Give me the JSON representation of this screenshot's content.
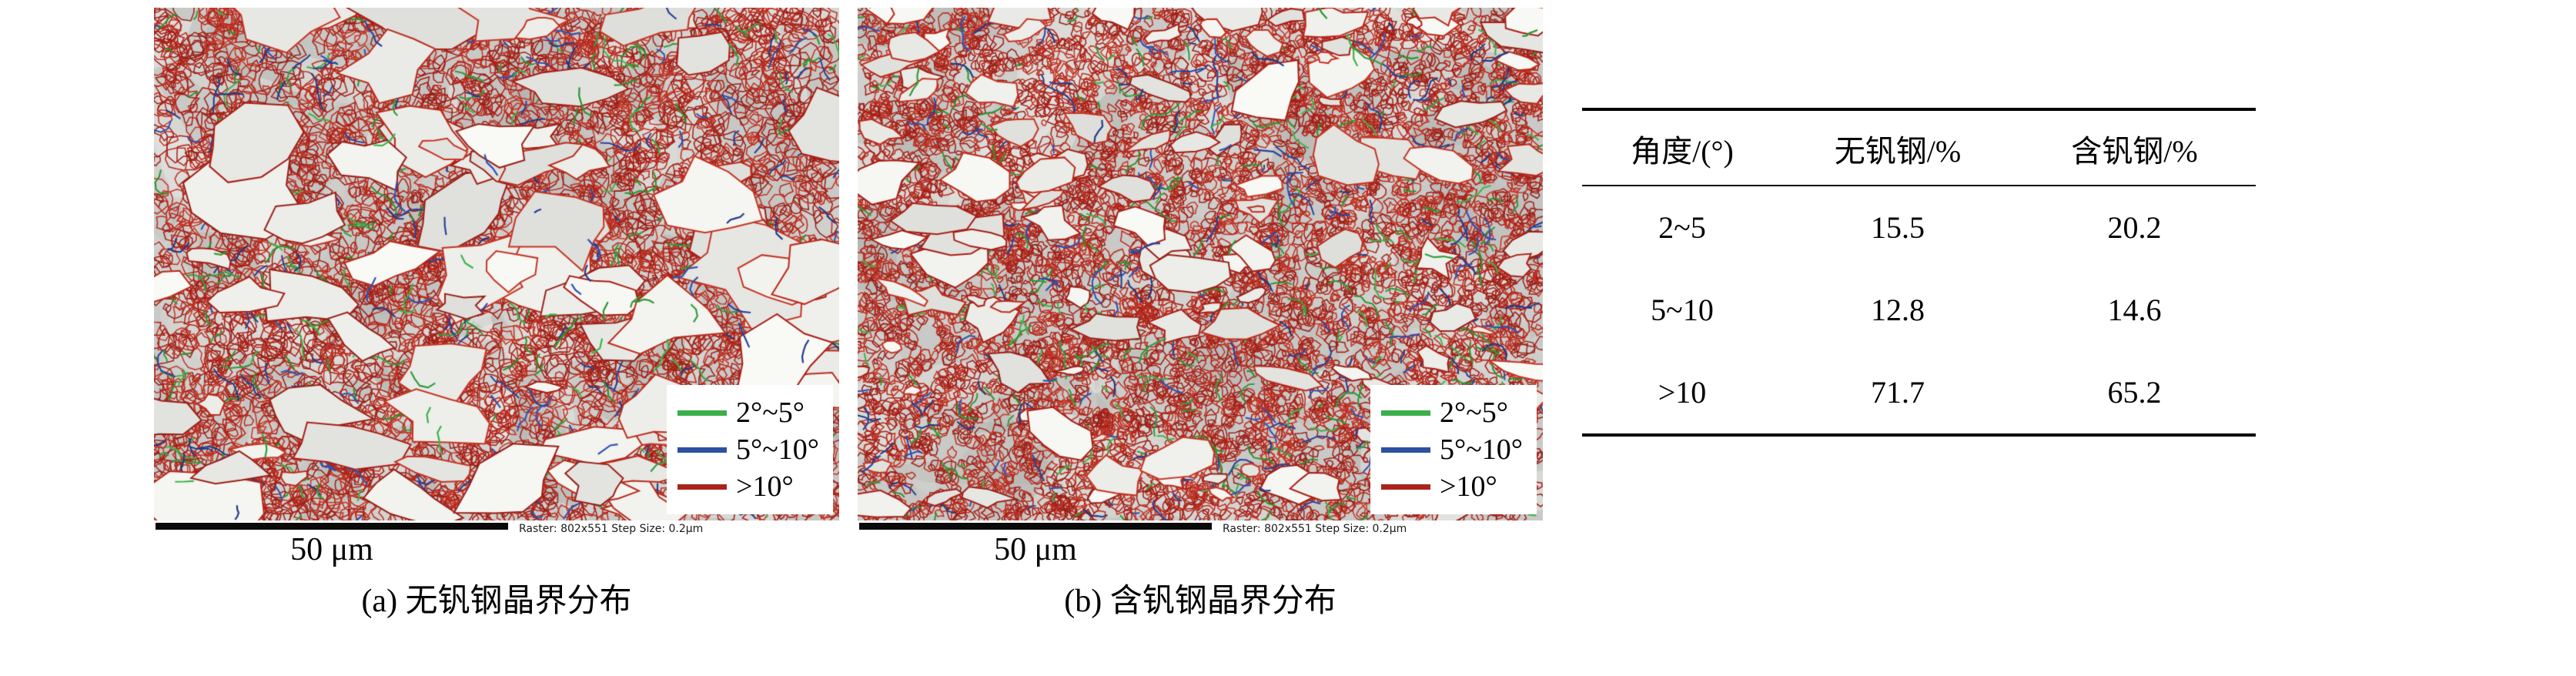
{
  "figure": {
    "panels": [
      {
        "caption": "(a) 无钒钢晶界分布",
        "scale_label": "50 μm",
        "raster_info": "Raster: 802x551   Step Size: 0.2μm",
        "legend": [
          {
            "label": "2°~5°",
            "color": "#3aaf4a"
          },
          {
            "label": "5°~10°",
            "color": "#2c4fa0"
          },
          {
            "label": ">10°",
            "color": "#a8241c"
          }
        ]
      },
      {
        "caption": "(b) 含钒钢晶界分布",
        "scale_label": "50 μm",
        "raster_info": "Raster: 802x551   Step Size: 0.2μm",
        "legend": [
          {
            "label": "2°~5°",
            "color": "#3aaf4a"
          },
          {
            "label": "5°~10°",
            "color": "#2c4fa0"
          },
          {
            "label": ">10°",
            "color": "#a8241c"
          }
        ]
      }
    ],
    "table": {
      "headers": [
        "角度/(°)",
        "无钒钢/%",
        "含钒钢/%"
      ],
      "rows": [
        [
          "2~5",
          "15.5",
          "20.2"
        ],
        [
          "5~10",
          "12.8",
          "14.6"
        ],
        [
          ">10",
          "71.7",
          "65.2"
        ]
      ]
    }
  },
  "chart_data": {
    "type": "table",
    "columns": [
      "角度/(°)",
      "无钒钢/%",
      "含钒钢/%"
    ],
    "rows": [
      [
        "2~5",
        15.5,
        20.2
      ],
      [
        "5~10",
        12.8,
        14.6
      ],
      [
        ">10",
        71.7,
        65.2
      ]
    ]
  },
  "colors": {
    "boundary_low_green": "#3aaf4a",
    "boundary_mid_blue": "#2c4fa0",
    "boundary_high_red": "#a8241c",
    "map_background": "#c9c9c7"
  }
}
